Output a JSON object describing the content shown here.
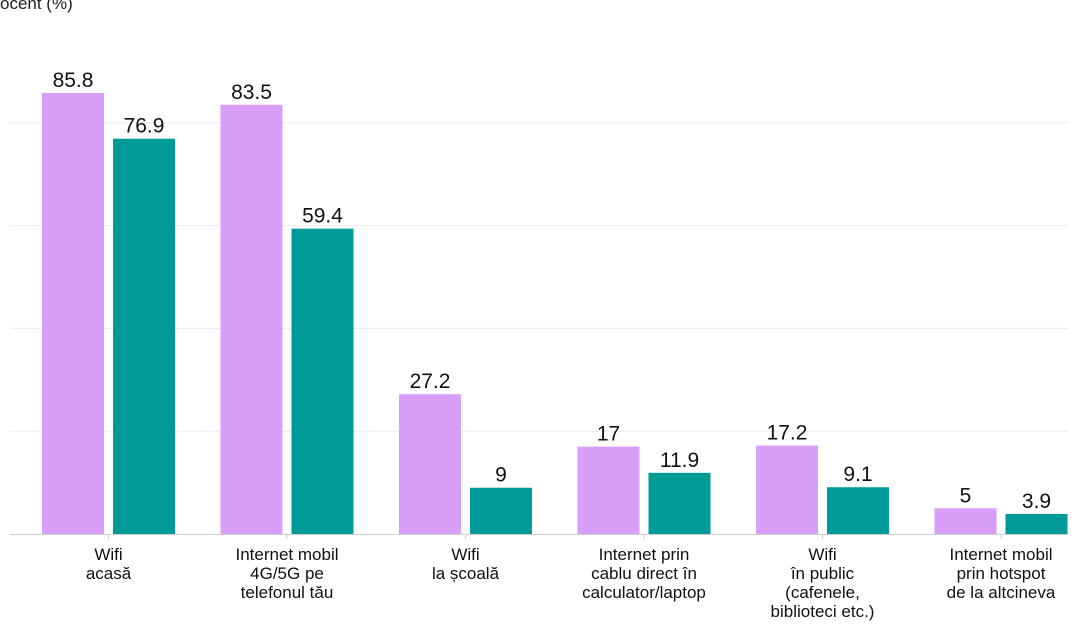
{
  "chart_data": {
    "type": "bar",
    "ylabel": "ocent (%)",
    "categories": [
      "Wifi\nacasă",
      "Internet mobil\n4G/5G pe\ntelefonul tău",
      "Wifi\nla școală",
      "Internet prin\ncablu direct în\ncalculator/laptop",
      "Wifi\nîn public\n(cafenele,\nbiblioteci etc.)",
      "Internet mobil\nprin hotspot\nde la altcineva"
    ],
    "series": [
      {
        "values": [
          85.8,
          83.5,
          27.2,
          17,
          17.2,
          5
        ]
      },
      {
        "values": [
          76.9,
          59.4,
          9,
          11.9,
          9.1,
          3.9
        ]
      }
    ],
    "value_labels": [
      [
        "85.8",
        "83.5",
        "27.2",
        "17",
        "17.2",
        "5"
      ],
      [
        "76.9",
        "59.4",
        "9",
        "11.9",
        "9.1",
        "3.9"
      ]
    ],
    "colors": [
      "#d99ff8",
      "#009b96"
    ],
    "ylim": [
      0,
      100
    ],
    "grid": true
  }
}
